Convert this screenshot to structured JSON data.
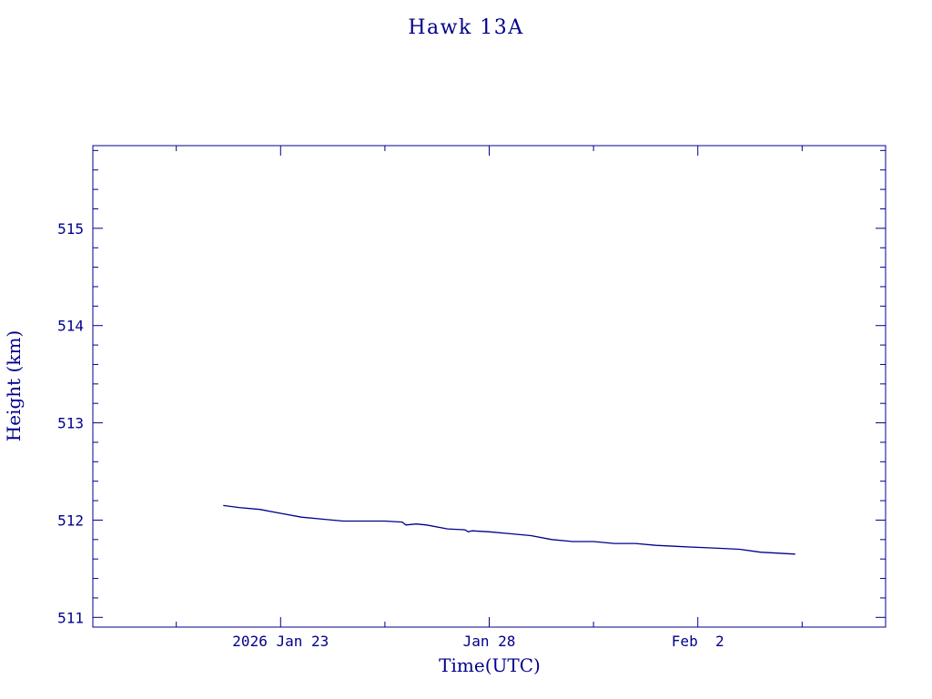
{
  "chart_data": {
    "type": "line",
    "title": "Hawk 13A",
    "xlabel": "Time(UTC)",
    "ylabel": "Height (km)",
    "color": "#00008b",
    "ylim": [
      510.9,
      515.85
    ],
    "xlim": [
      "2026-01-18T12:00",
      "2026-02-06T12:00"
    ],
    "x_ticks": [
      {
        "x": "2026-01-23",
        "label": "2026 Jan 23"
      },
      {
        "x": "2026-01-28",
        "label": "Jan 28"
      },
      {
        "x": "2026-02-02",
        "label": "Feb  2"
      }
    ],
    "y_ticks": [
      511,
      512,
      513,
      514,
      515
    ],
    "series": [
      {
        "name": "",
        "x": [
          "2026-01-21T15:00",
          "2026-01-22T00:00",
          "2026-01-22T12:00",
          "2026-01-23T00:00",
          "2026-01-23T12:00",
          "2026-01-24T00:00",
          "2026-01-24T12:00",
          "2026-01-25T00:00",
          "2026-01-25T12:00",
          "2026-01-25T22:00",
          "2026-01-26T00:00",
          "2026-01-26T06:00",
          "2026-01-26T12:00",
          "2026-01-27T00:00",
          "2026-01-27T10:00",
          "2026-01-27T12:00",
          "2026-01-27T14:00",
          "2026-01-28T00:00",
          "2026-01-28T12:00",
          "2026-01-29T00:00",
          "2026-01-29T12:00",
          "2026-01-30T00:00",
          "2026-01-30T12:00",
          "2026-01-31T00:00",
          "2026-01-31T12:00",
          "2026-02-01T00:00",
          "2026-02-01T12:00",
          "2026-02-02T00:00",
          "2026-02-02T12:00",
          "2026-02-03T00:00",
          "2026-02-03T12:00",
          "2026-02-04T08:00"
        ],
        "y": [
          512.15,
          512.13,
          512.11,
          512.07,
          512.03,
          512.01,
          511.99,
          511.99,
          511.99,
          511.98,
          511.95,
          511.96,
          511.95,
          511.91,
          511.9,
          511.88,
          511.89,
          511.88,
          511.86,
          511.84,
          511.8,
          511.78,
          511.78,
          511.76,
          511.76,
          511.74,
          511.73,
          511.72,
          511.71,
          511.7,
          511.67,
          511.65
        ]
      }
    ]
  }
}
